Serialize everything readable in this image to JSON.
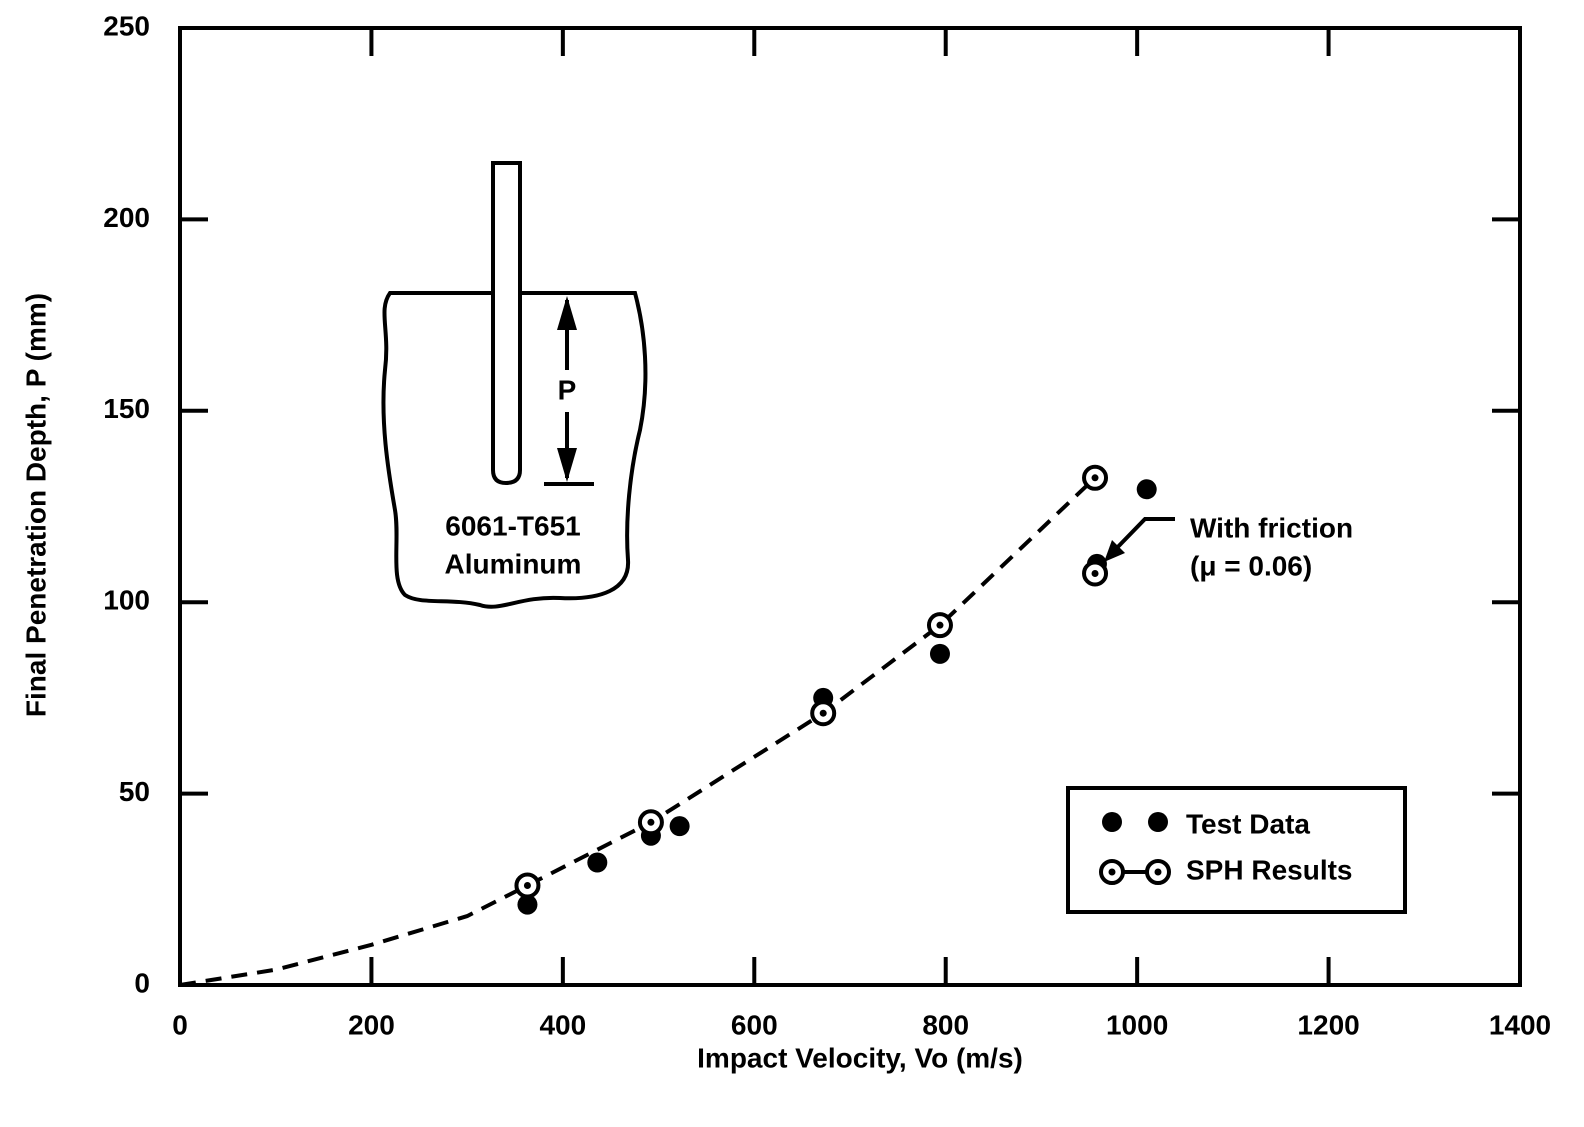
{
  "chart_data": {
    "type": "scatter",
    "xlabel": "Impact Velocity, Vo (m/s)",
    "ylabel": "Final Penetration Depth, P (mm)",
    "xlim": [
      0,
      1400
    ],
    "xticks": [
      0,
      200,
      400,
      600,
      800,
      1000,
      1200,
      1400
    ],
    "ylim": [
      0,
      250
    ],
    "yticks": [
      0,
      50,
      100,
      150,
      200,
      250
    ],
    "grid": false,
    "legend": "lower right",
    "series": [
      {
        "name": "Test Data",
        "marker": "filled",
        "color": "#000000",
        "x": [
          363,
          436,
          492,
          522,
          672,
          794,
          958,
          1010
        ],
        "values": [
          21,
          32,
          39,
          41.5,
          75,
          86.5,
          110,
          129.5
        ]
      },
      {
        "name": "SPH Results",
        "marker": "open",
        "color": "#000000",
        "x": [
          363,
          492,
          672,
          794,
          956
        ],
        "values": [
          26,
          42.5,
          71,
          94,
          132.5
        ]
      },
      {
        "marker": "dashed-line",
        "color": "#000000",
        "x": [
          0,
          100,
          200,
          300,
          363,
          492,
          672,
          794,
          956
        ],
        "values": [
          0,
          4,
          10.5,
          18,
          26,
          42.5,
          71,
          94,
          132.5
        ]
      }
    ],
    "annotations": [
      {
        "text": "With friction",
        "subtext": "(μ = 0.06)",
        "x": 956,
        "y": 107.5,
        "marker": "open"
      }
    ],
    "inset": {
      "material": "6061-T651",
      "material_name": "Aluminum",
      "depth_label": "P"
    }
  }
}
